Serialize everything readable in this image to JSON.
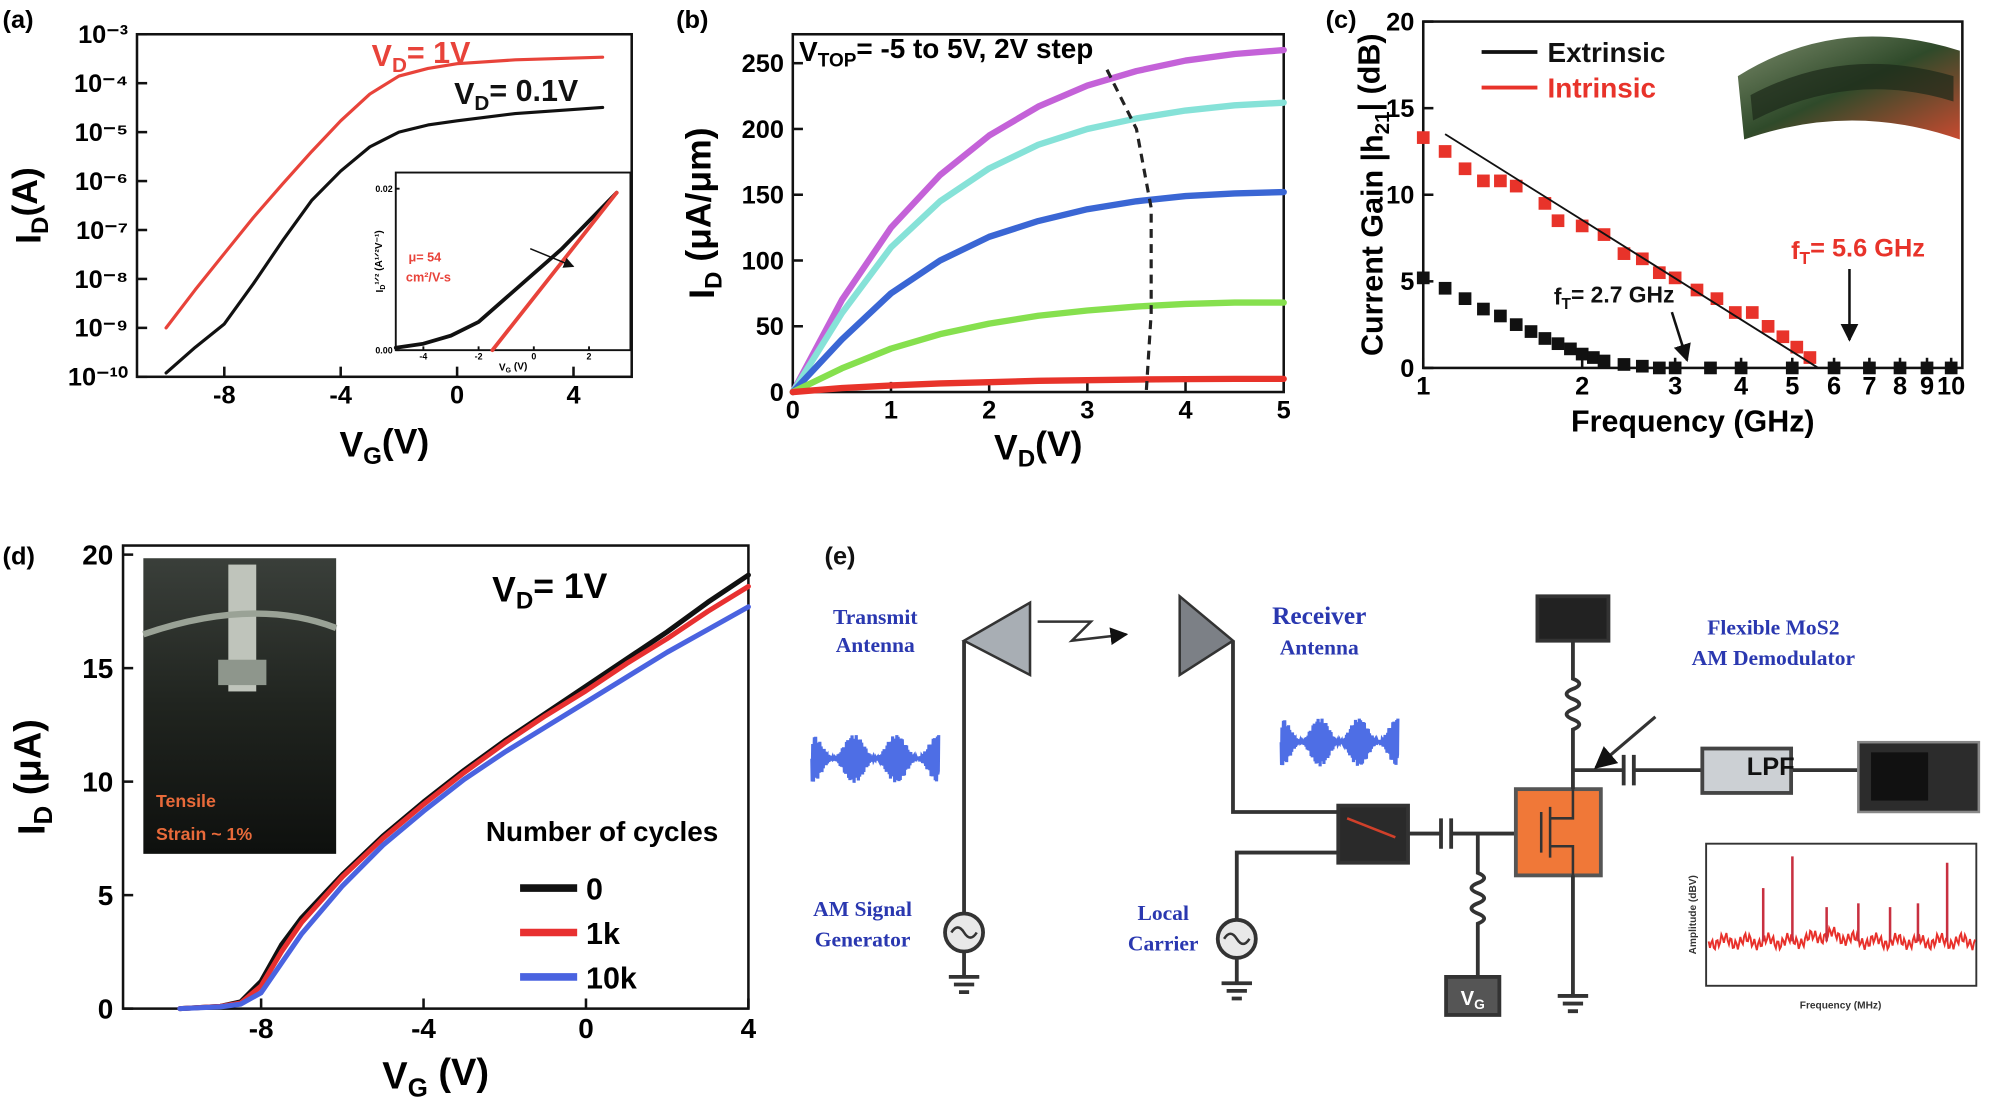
{
  "chart_data": [
    {
      "type": "line",
      "panel_label": "(a)",
      "xlabel": [
        "V",
        "G",
        "(V)"
      ],
      "ylabel": [
        "I",
        "D",
        "(A)"
      ],
      "x": [
        -10,
        -9,
        -8,
        -7,
        -6,
        -5,
        -4,
        -3,
        -2,
        -1,
        0,
        2,
        5
      ],
      "series": [
        {
          "name": [
            "V",
            "D",
            "= 1V"
          ],
          "color": "#e8433a",
          "values": [
            1e-09,
            6e-09,
            3.3e-08,
            1.8e-07,
            8.7e-07,
            4e-06,
            1.7e-05,
            6e-05,
            0.00014,
            0.0002,
            0.00025,
            0.0003,
            0.00034
          ]
        },
        {
          "name": [
            "V",
            "D",
            "= 0.1V"
          ],
          "color": "#111111",
          "values": [
            1.2e-10,
            4e-10,
            1.2e-09,
            8e-09,
            6e-08,
            4e-07,
            1.6e-06,
            5e-06,
            1e-05,
            1.4e-05,
            1.7e-05,
            2.4e-05,
            3.2e-05
          ]
        }
      ],
      "xlim": [
        -11,
        6
      ],
      "xticks": [
        -8,
        -4,
        0,
        4
      ],
      "yscale": "log",
      "ylim": [
        1e-10,
        0.001
      ],
      "yticks": [
        {
          "value": 1e-10,
          "label": "10⁻¹⁰"
        },
        {
          "value": 1e-09,
          "label": "10⁻⁹"
        },
        {
          "value": 1e-08,
          "label": "10⁻⁸"
        },
        {
          "value": 1e-07,
          "label": "10⁻⁷"
        },
        {
          "value": 1e-06,
          "label": "10⁻⁶"
        },
        {
          "value": 1e-05,
          "label": "10⁻⁵"
        },
        {
          "value": 0.0001,
          "label": "10⁻⁴"
        },
        {
          "value": 0.001,
          "label": "10⁻³"
        }
      ]
    },
    {
      "type": "line",
      "xlabel": [
        "V",
        "G",
        " (V)"
      ],
      "ylabel": [
        "I",
        "D",
        "¹ᐟ² (A¹ᐟ²V⁻¹)"
      ],
      "annotation": [
        "μ= 54",
        "cm²/V-s"
      ],
      "x": [
        -5,
        -4,
        -3,
        -2,
        -1,
        0,
        1,
        2,
        3
      ],
      "series": [
        {
          "color": "#111111",
          "values": [
            0.0003,
            0.0008,
            0.0018,
            0.0035,
            0.0065,
            0.0095,
            0.0125,
            0.016,
            0.0195
          ]
        },
        {
          "color": "#e8433a",
          "x": [
            -1.5,
            3
          ],
          "values": [
            0,
            0.0195
          ]
        }
      ],
      "xlim": [
        -5,
        3.5
      ],
      "xticks": [
        -4,
        -2,
        0,
        2
      ],
      "ylim": [
        0,
        0.022
      ],
      "yticks": [
        {
          "value": 0,
          "label": "0.00"
        },
        {
          "value": 0.02,
          "label": "0.02"
        }
      ]
    },
    {
      "type": "line",
      "panel_label": "(b)",
      "annotation": [
        "V",
        "TOP",
        "= -5 to 5V, 2V step"
      ],
      "xlabel": [
        "V",
        "D",
        "(V)"
      ],
      "ylabel": [
        "I",
        "D",
        " (μA/μm)"
      ],
      "x": [
        0,
        0.5,
        1,
        1.5,
        2,
        2.5,
        3,
        3.5,
        4,
        4.5,
        5
      ],
      "series": [
        {
          "color": "#c462d8",
          "values": [
            0,
            70,
            125,
            165,
            195,
            217,
            233,
            244,
            252,
            257,
            260
          ]
        },
        {
          "color": "#86e2d8",
          "values": [
            0,
            60,
            110,
            145,
            170,
            188,
            200,
            208,
            214,
            218,
            220
          ]
        },
        {
          "color": "#3a66d4",
          "values": [
            0,
            40,
            75,
            100,
            118,
            130,
            139,
            145,
            149,
            151,
            152
          ]
        },
        {
          "color": "#86e04e",
          "values": [
            0,
            18,
            33,
            44,
            52,
            58,
            62,
            65,
            67,
            68,
            68
          ]
        },
        {
          "color": "#e8332a",
          "values": [
            0,
            3,
            5,
            6.5,
            7.5,
            8.5,
            9,
            9.5,
            9.8,
            10,
            10
          ]
        }
      ],
      "boundary": {
        "x": [
          3.2,
          3.5,
          3.65,
          3.65,
          3.6
        ],
        "values": [
          245,
          200,
          140,
          60,
          0
        ]
      },
      "xlim": [
        0,
        5
      ],
      "xticks": [
        0,
        1,
        2,
        3,
        4,
        5
      ],
      "ylim": [
        0,
        272
      ],
      "yticks": [
        0,
        50,
        100,
        150,
        200,
        250
      ]
    },
    {
      "type": "scatter",
      "panel_label": "(c)",
      "xlabel": "Frequency (GHz)",
      "ylabel": [
        "Current Gain |h",
        "21",
        "| (dB)"
      ],
      "series": [
        {
          "name": "Extrinsic",
          "color": "#111111",
          "x": [
            1.0,
            1.1,
            1.2,
            1.3,
            1.4,
            1.5,
            1.6,
            1.7,
            1.8,
            1.9,
            2.0,
            2.1,
            2.2,
            2.4,
            2.6,
            2.8,
            3.0,
            3.5,
            4.0,
            5.0,
            6.0,
            7.0,
            8.0,
            9.0,
            10.0
          ],
          "values": [
            5.2,
            4.6,
            4.0,
            3.4,
            3.0,
            2.5,
            2.1,
            1.7,
            1.4,
            1.1,
            0.8,
            0.6,
            0.4,
            0.2,
            0.1,
            0,
            0,
            0,
            0,
            0,
            0,
            0,
            0,
            0,
            0
          ]
        },
        {
          "name": "Intrinsic",
          "color": "#e8332a",
          "x": [
            1.0,
            1.1,
            1.2,
            1.3,
            1.4,
            1.5,
            1.7,
            1.8,
            2.0,
            2.2,
            2.4,
            2.6,
            2.8,
            3.0,
            3.3,
            3.6,
            3.9,
            4.2,
            4.5,
            4.8,
            5.1,
            5.4
          ],
          "values": [
            13.3,
            12.5,
            11.5,
            10.8,
            10.8,
            10.5,
            9.5,
            8.5,
            8.2,
            7.7,
            6.6,
            6.3,
            5.5,
            5.2,
            4.5,
            4.0,
            3.2,
            3.2,
            2.4,
            1.8,
            1.2,
            0.6
          ]
        }
      ],
      "fit_line": {
        "x": [
          1.1,
          5.6
        ],
        "values": [
          13.5,
          0
        ]
      },
      "annotations": [
        [
          "f",
          "T",
          "= 2.7 GHz"
        ],
        [
          "f",
          "T",
          "= 5.6 GHz"
        ]
      ],
      "xscale": "log",
      "xlim": [
        1,
        10.5
      ],
      "xticks": [
        1,
        2,
        3,
        4,
        5,
        6,
        7,
        8,
        9,
        10
      ],
      "ylim": [
        0,
        20
      ],
      "yticks": [
        0,
        5,
        10,
        15,
        20
      ],
      "legend": "upper left"
    },
    {
      "type": "line",
      "panel_label": "(d)",
      "annotation": [
        "V",
        "D",
        "= 1V"
      ],
      "legend_title": "Number of cycles",
      "inset_text": [
        "Tensile",
        "Strain ~ 1%"
      ],
      "xlabel": [
        "V",
        "G",
        " (V)"
      ],
      "ylabel": [
        "I",
        "D",
        " (μA)"
      ],
      "x": [
        -10,
        -9,
        -8.5,
        -8,
        -7.5,
        -7,
        -6,
        -5,
        -4,
        -3,
        -2,
        -1,
        0,
        1,
        2,
        3,
        4
      ],
      "series": [
        {
          "name": "0",
          "color": "#111111",
          "values": [
            0,
            0.1,
            0.3,
            1.2,
            2.8,
            4.0,
            5.9,
            7.6,
            9.1,
            10.5,
            11.8,
            13.0,
            14.2,
            15.4,
            16.6,
            17.9,
            19.1
          ]
        },
        {
          "name": "1k",
          "color": "#e83030",
          "values": [
            0,
            0.1,
            0.25,
            1.0,
            2.5,
            3.8,
            5.8,
            7.5,
            9.0,
            10.4,
            11.7,
            12.9,
            14.0,
            15.2,
            16.3,
            17.5,
            18.6
          ]
        },
        {
          "name": "10k",
          "color": "#4a63e0",
          "values": [
            0,
            0.08,
            0.2,
            0.7,
            2.0,
            3.3,
            5.4,
            7.2,
            8.7,
            10.1,
            11.3,
            12.4,
            13.5,
            14.6,
            15.7,
            16.7,
            17.7
          ]
        }
      ],
      "xlim": [
        -11.4,
        4
      ],
      "xticks": [
        -8,
        -4,
        0,
        4
      ],
      "ylim": [
        0,
        20.4
      ],
      "yticks": [
        0,
        5,
        10,
        15,
        20
      ],
      "legend": "lower right"
    }
  ],
  "diagram": {
    "panel_label": "(e)",
    "transmit_antenna": [
      "Transmit",
      "Antenna"
    ],
    "receiver_antenna": [
      "Receiver",
      "Antenna"
    ],
    "signal_generator": [
      "AM Signal",
      "Generator"
    ],
    "local_carrier": [
      "Local",
      "Carrier"
    ],
    "demodulator": [
      "Flexible MoS2",
      "AM Demodulator"
    ],
    "filter": "LPF",
    "gate_bias": [
      "V",
      "G"
    ],
    "spectrum_xlabel": "Frequency (MHz)",
    "spectrum_ylabel": "Amplitude (dBV)"
  }
}
